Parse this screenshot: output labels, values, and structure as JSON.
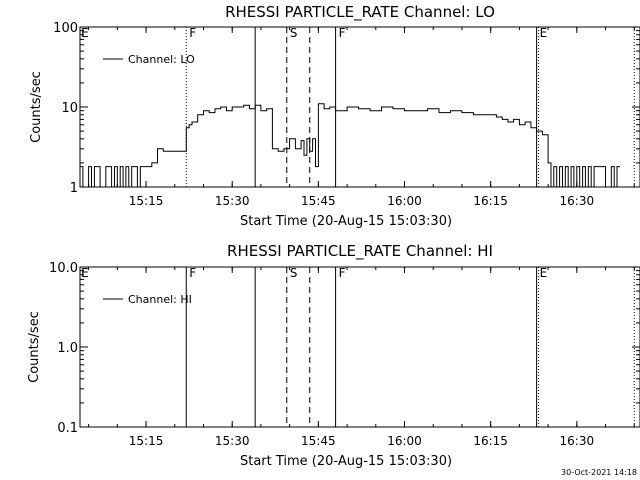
{
  "timestamp": "30-Oct-2021 14:18",
  "chart_data": [
    {
      "type": "line",
      "title": "RHESSI PARTICLE_RATE Channel: LO",
      "xlabel": "Start Time (20-Aug-15 15:03:30)",
      "ylabel": "Counts/sec",
      "yscale": "log",
      "ylim": [
        1,
        100
      ],
      "xlim": [
        "15:03:30",
        "16:41:00"
      ],
      "x_ticks": [
        "15:15",
        "15:30",
        "15:45",
        "16:00",
        "16:15",
        "16:30"
      ],
      "y_ticks": [
        "1",
        "10",
        "100"
      ],
      "legend": {
        "position": "top-left",
        "entries": [
          "Channel: LO"
        ]
      },
      "grid": false,
      "series": [
        {
          "name": "Channel: LO",
          "x": [
            "15:03:30",
            "15:04:00",
            "15:05:00",
            "15:05:30",
            "15:06:00",
            "15:06:30",
            "15:07:00",
            "15:08:00",
            "15:08:30",
            "15:09:00",
            "15:09:30",
            "15:10:00",
            "15:10:30",
            "15:11:00",
            "15:11:30",
            "15:12:00",
            "15:12:30",
            "15:13:00",
            "15:13:30",
            "15:14:00",
            "15:15:00",
            "15:16:00",
            "15:16:30",
            "15:17:00",
            "15:18:00",
            "15:19:00",
            "15:20:00",
            "15:21:00",
            "15:22:00",
            "15:22:30",
            "15:23:00",
            "15:24:00",
            "15:25:00",
            "15:26:00",
            "15:27:00",
            "15:28:00",
            "15:29:00",
            "15:30:00",
            "15:31:00",
            "15:32:00",
            "15:33:00",
            "15:34:00",
            "15:35:00",
            "15:36:00",
            "15:37:00",
            "15:38:00",
            "15:39:00",
            "15:40:00",
            "15:41:00",
            "15:42:00",
            "15:42:30",
            "15:43:00",
            "15:43:30",
            "15:44:00",
            "15:44:30",
            "15:45:00",
            "15:46:00",
            "15:47:00",
            "15:48:00",
            "15:50:00",
            "15:52:00",
            "15:54:00",
            "15:56:00",
            "15:58:00",
            "16:00:00",
            "16:02:00",
            "16:04:00",
            "16:06:00",
            "16:08:00",
            "16:10:00",
            "16:12:00",
            "16:14:00",
            "16:16:00",
            "16:17:00",
            "16:18:00",
            "16:19:00",
            "16:20:00",
            "16:21:00",
            "16:22:00",
            "16:23:00",
            "16:24:00",
            "16:25:00",
            "16:25:30",
            "16:26:00",
            "16:26:30",
            "16:27:00",
            "16:27:30",
            "16:28:00",
            "16:28:30",
            "16:29:00",
            "16:29:30",
            "16:30:00",
            "16:30:30",
            "16:31:00",
            "16:31:30",
            "16:32:00",
            "16:32:30",
            "16:33:00",
            "16:34:00",
            "16:35:00",
            "16:36:00",
            "16:36:30",
            "16:37:00"
          ],
          "values": [
            1.8,
            1.0,
            1.8,
            1.0,
            1.8,
            1.8,
            1.0,
            1.8,
            1.8,
            1.0,
            1.8,
            1.0,
            1.8,
            1.0,
            1.8,
            1.0,
            1.8,
            1.8,
            1.0,
            1.8,
            1.8,
            2.0,
            2.0,
            3.0,
            2.8,
            2.8,
            2.8,
            2.8,
            5.5,
            6.0,
            6.5,
            8.0,
            9.0,
            8.5,
            9.5,
            10.0,
            9.0,
            10.0,
            10.0,
            10.5,
            9.5,
            10.5,
            9.0,
            9.5,
            3.0,
            2.8,
            3.0,
            4.0,
            3.0,
            3.8,
            2.5,
            4.0,
            2.8,
            4.0,
            1.8,
            11.0,
            9.5,
            10.0,
            9.0,
            10.0,
            9.5,
            9.0,
            10.0,
            9.5,
            9.0,
            9.0,
            9.5,
            8.5,
            9.0,
            8.5,
            8.0,
            8.0,
            7.5,
            7.0,
            6.5,
            7.0,
            6.0,
            6.5,
            5.5,
            5.0,
            4.5,
            2.0,
            1.0,
            1.8,
            1.0,
            1.8,
            1.0,
            1.8,
            1.0,
            1.8,
            1.0,
            1.8,
            1.0,
            1.8,
            1.0,
            1.8,
            1.0,
            1.8,
            1.8,
            1.0,
            1.8,
            1.0,
            1.8
          ]
        }
      ],
      "annotations": [
        {
          "label": "E",
          "time": "15:03:30",
          "style": "none"
        },
        {
          "label": "F",
          "time": "15:22:00",
          "style": "dotted"
        },
        {
          "label": "",
          "time": "15:34:00",
          "style": "solid"
        },
        {
          "label": "S",
          "time": "15:39:30",
          "style": "dashed"
        },
        {
          "label": "",
          "time": "15:43:30",
          "style": "dashed"
        },
        {
          "label": "F",
          "time": "15:48:00",
          "style": "solid"
        },
        {
          "label": "E",
          "time": "16:23:00",
          "style": "solid-dotted"
        },
        {
          "label": "",
          "time": "16:40:00",
          "style": "dotted"
        }
      ]
    },
    {
      "type": "line",
      "title": "RHESSI PARTICLE_RATE Channel: HI",
      "xlabel": "Start Time (20-Aug-15 15:03:30)",
      "ylabel": "Counts/sec",
      "yscale": "log",
      "ylim": [
        0.1,
        10
      ],
      "xlim": [
        "15:03:30",
        "16:41:00"
      ],
      "x_ticks": [
        "15:15",
        "15:30",
        "15:45",
        "16:00",
        "16:15",
        "16:30"
      ],
      "y_ticks": [
        "0.1",
        "1.0",
        "10.0"
      ],
      "legend": {
        "position": "top-left",
        "entries": [
          "Channel: HI"
        ]
      },
      "grid": false,
      "series": [
        {
          "name": "Channel: HI",
          "x": [],
          "values": []
        }
      ],
      "annotations": [
        {
          "label": "E",
          "time": "15:03:30",
          "style": "none"
        },
        {
          "label": "F",
          "time": "15:22:00",
          "style": "solid"
        },
        {
          "label": "",
          "time": "15:34:00",
          "style": "solid"
        },
        {
          "label": "S",
          "time": "15:39:30",
          "style": "dashed"
        },
        {
          "label": "",
          "time": "15:43:30",
          "style": "dashed"
        },
        {
          "label": "F",
          "time": "15:48:00",
          "style": "solid"
        },
        {
          "label": "E",
          "time": "16:23:00",
          "style": "solid-dotted"
        },
        {
          "label": "",
          "time": "16:40:00",
          "style": "dotted"
        }
      ]
    }
  ]
}
